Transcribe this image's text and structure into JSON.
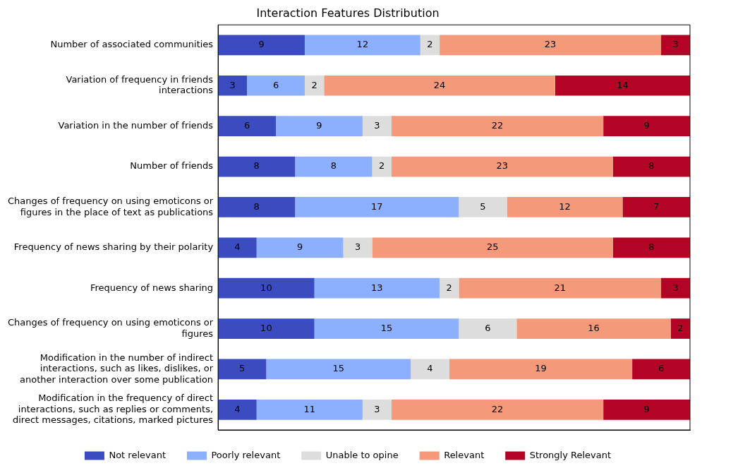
{
  "chart_data": {
    "type": "bar",
    "orientation": "horizontal",
    "stacked": true,
    "title": "Interaction Features Distribution",
    "categories": [
      "Number of associated communities",
      "Variation of frequency in friends interactions",
      "Variation in the number of friends",
      "Number of friends",
      "Changes of frequency on using emoticons or figures in the place of text as publications",
      "Frequency of news sharing by their polarity",
      "Frequency of news sharing",
      "Changes of frequency on using emoticons or figures",
      "Modification in the number of indirect interactions, such as likes, dislikes, or another interaction over some publication",
      "Modification in the frequency of direct interactions, such as replies or comments, direct messages, citations, marked pictures"
    ],
    "series": [
      {
        "name": "Not relevant",
        "color": "#3b4cc0",
        "values": [
          9,
          3,
          6,
          8,
          8,
          4,
          10,
          10,
          5,
          4
        ]
      },
      {
        "name": "Poorly relevant",
        "color": "#8db0fe",
        "values": [
          12,
          6,
          9,
          8,
          17,
          9,
          13,
          15,
          15,
          11
        ]
      },
      {
        "name": "Unable to opine",
        "color": "#dddddd",
        "values": [
          2,
          2,
          3,
          2,
          5,
          3,
          2,
          6,
          4,
          3
        ]
      },
      {
        "name": "Relevant",
        "color": "#f49a7b",
        "values": [
          23,
          24,
          22,
          23,
          12,
          25,
          21,
          16,
          19,
          22
        ]
      },
      {
        "name": "Strongly Relevant",
        "color": "#b40426",
        "values": [
          3,
          14,
          9,
          8,
          7,
          8,
          3,
          2,
          6,
          9
        ]
      }
    ],
    "xlim": [
      0,
      49
    ],
    "tick_labels": "y",
    "data_labels": true,
    "legend": "bottom",
    "grid": false
  }
}
